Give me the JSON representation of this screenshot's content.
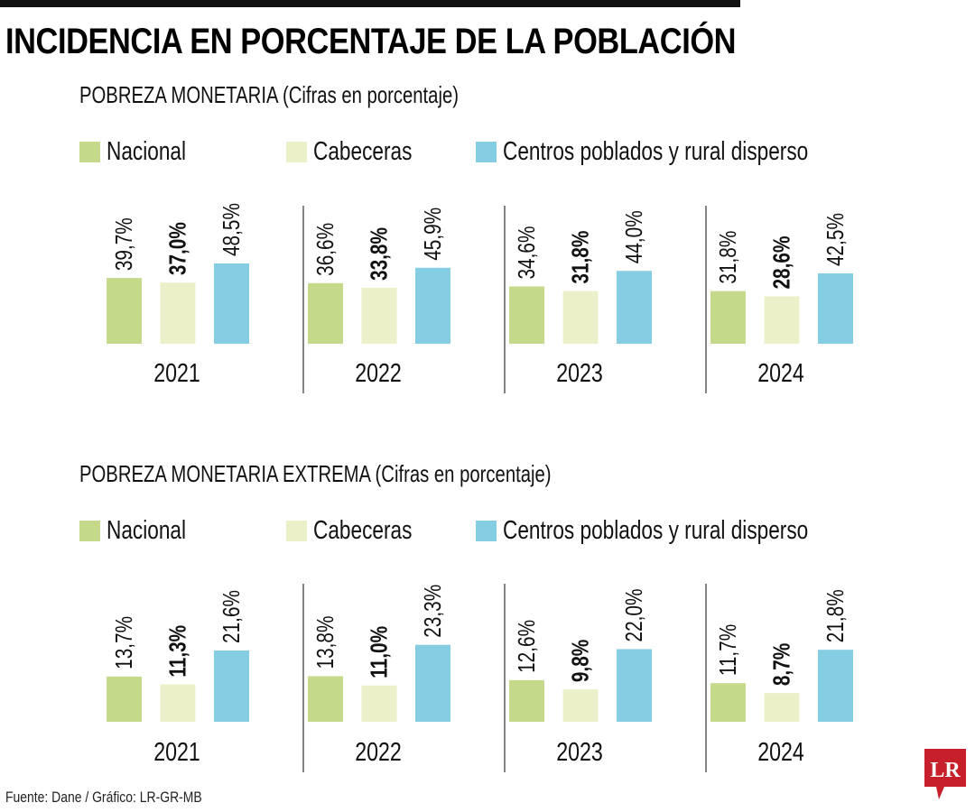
{
  "title": "INCIDENCIA EN PORCENTAJE DE LA POBLACIÓN",
  "source": "Fuente: Dane / Gráfico: LR-GR-MB",
  "logo": "LR",
  "colors": {
    "Nacional": "#c5d98a",
    "Cabeceras": "#ecf0c9",
    "Centros poblados y rural disperso": "#84cde2"
  },
  "chart_data": [
    {
      "type": "bar",
      "title": "POBREZA MONETARIA (Cifras en porcentaje)",
      "categories": [
        "2021",
        "2022",
        "2023",
        "2024"
      ],
      "legend": [
        "Nacional",
        "Cabeceras",
        "Centros poblados y rural disperso"
      ],
      "series": [
        {
          "name": "Nacional",
          "values": [
            39.7,
            36.6,
            34.6,
            31.8
          ],
          "labels": [
            "39,7%",
            "36,6%",
            "34,6%",
            "31,8%"
          ]
        },
        {
          "name": "Cabeceras",
          "values": [
            37.0,
            33.8,
            31.8,
            28.6
          ],
          "labels": [
            "37,0%",
            "33,8%",
            "31,8%",
            "28,6%"
          ]
        },
        {
          "name": "Centros poblados y rural disperso",
          "values": [
            48.5,
            45.9,
            44.0,
            42.5
          ],
          "labels": [
            "48,5%",
            "45,9%",
            "44,0%",
            "42,5%"
          ]
        }
      ]
    },
    {
      "type": "bar",
      "title": "POBREZA MONETARIA EXTREMA (Cifras en porcentaje)",
      "categories": [
        "2021",
        "2022",
        "2023",
        "2024"
      ],
      "legend": [
        "Nacional",
        "Cabeceras",
        "Centros poblados y rural disperso"
      ],
      "series": [
        {
          "name": "Nacional",
          "values": [
            13.7,
            13.8,
            12.6,
            11.7
          ],
          "labels": [
            "13,7%",
            "13,8%",
            "12,6%",
            "11,7%"
          ]
        },
        {
          "name": "Cabeceras",
          "values": [
            11.3,
            11.0,
            9.8,
            8.7
          ],
          "labels": [
            "11,3%",
            "11,0%",
            "9,8%",
            "8,7%"
          ]
        },
        {
          "name": "Centros poblados y rural disperso",
          "values": [
            21.6,
            23.3,
            22.0,
            21.8
          ],
          "labels": [
            "21,6%",
            "23,3%",
            "22,0%",
            "21,8%"
          ]
        }
      ]
    }
  ]
}
